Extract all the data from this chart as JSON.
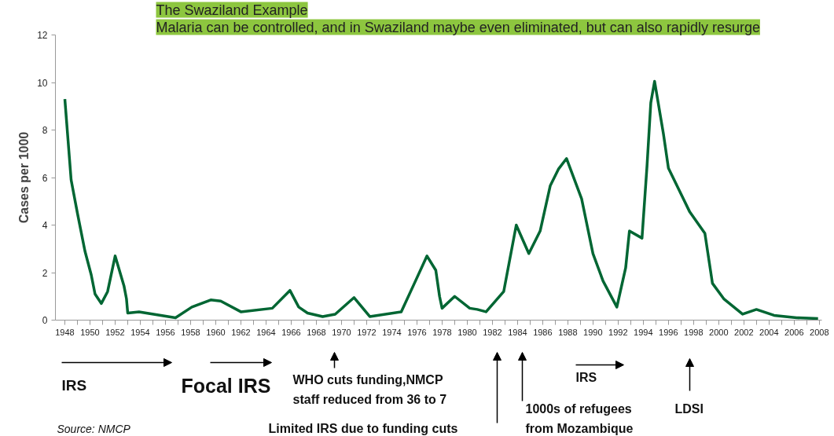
{
  "chart_data": {
    "type": "line",
    "title": "The Swaziland Example",
    "subtitle": "Malaria can be controlled, and in Swaziland maybe even eliminated, but can also rapidly resurge",
    "ylabel": "Cases per 1000",
    "x": [
      1948,
      1948.5,
      1949.0,
      1949.6,
      1950.1,
      1950.4,
      1950.9,
      1951.4,
      1952.0,
      1952.7,
      1952.9,
      1953.0,
      1953.9,
      1956.8,
      1958.1,
      1959.6,
      1960.4,
      1962.0,
      1964.5,
      1965.9,
      1966.6,
      1967.3,
      1968.5,
      1969.5,
      1971.0,
      1972.25,
      1974.75,
      1975.8,
      1976.8,
      1977.5,
      1977.8,
      1978.0,
      1979.0,
      1980.2,
      1980.8,
      1981.5,
      1982.9,
      1983.9,
      1984.9,
      1985.8,
      1986.6,
      1987.25,
      1987.9,
      1989.1,
      1990.0,
      1990.8,
      1991.9,
      1992.6,
      1992.9,
      1993.9,
      1994.3,
      1994.6,
      1994.9,
      1995.6,
      1996.0,
      1997.7,
      1998.9,
      1999.5,
      2000.4,
      2001.9,
      2003.0,
      2004.4,
      2006.2,
      2007.9
    ],
    "series": [
      {
        "color": "#006633",
        "values": [
          9.3,
          5.9,
          4.5,
          2.9,
          1.9,
          1.1,
          0.7,
          1.2,
          2.7,
          1.45,
          0.9,
          0.3,
          0.35,
          0.1,
          0.55,
          0.85,
          0.8,
          0.35,
          0.5,
          1.25,
          0.55,
          0.3,
          0.15,
          0.25,
          0.95,
          0.15,
          0.35,
          1.55,
          2.7,
          2.1,
          1.0,
          0.5,
          1.0,
          0.5,
          0.45,
          0.35,
          1.2,
          4.0,
          2.8,
          3.75,
          5.65,
          6.35,
          6.8,
          5.1,
          2.8,
          1.65,
          0.55,
          2.2,
          3.75,
          3.45,
          6.5,
          9.15,
          10.05,
          7.85,
          6.4,
          4.55,
          3.65,
          1.55,
          0.9,
          0.25,
          0.45,
          0.2,
          0.1,
          0.07
        ]
      }
    ],
    "xlim": [
      1947.25,
      2008.2
    ],
    "xticks": [
      {
        "value": 1948,
        "label": "1948"
      },
      {
        "value": 1949,
        "label": null
      },
      {
        "value": 1950,
        "label": "1950"
      },
      {
        "value": 1951,
        "label": null
      },
      {
        "value": 1952,
        "label": "1952"
      },
      {
        "value": 1953,
        "label": null
      },
      {
        "value": 1954,
        "label": "1954"
      },
      {
        "value": 1955,
        "label": null
      },
      {
        "value": 1956,
        "label": "1956"
      },
      {
        "value": 1957,
        "label": null
      },
      {
        "value": 1958,
        "label": "1958"
      },
      {
        "value": 1959,
        "label": null
      },
      {
        "value": 1960,
        "label": "1960"
      },
      {
        "value": 1961,
        "label": null
      },
      {
        "value": 1962,
        "label": "1962"
      },
      {
        "value": 1963,
        "label": null
      },
      {
        "value": 1964,
        "label": "1964"
      },
      {
        "value": 1965,
        "label": null
      },
      {
        "value": 1966,
        "label": "1966"
      },
      {
        "value": 1967,
        "label": null
      },
      {
        "value": 1968,
        "label": "1968"
      },
      {
        "value": 1969,
        "label": null
      },
      {
        "value": 1970,
        "label": "1970"
      },
      {
        "value": 1971,
        "label": null
      },
      {
        "value": 1972,
        "label": "1972"
      },
      {
        "value": 1973,
        "label": null
      },
      {
        "value": 1974,
        "label": "1974"
      },
      {
        "value": 1975,
        "label": null
      },
      {
        "value": 1976,
        "label": "1976"
      },
      {
        "value": 1977,
        "label": null
      },
      {
        "value": 1978,
        "label": "1978"
      },
      {
        "value": 1979,
        "label": null
      },
      {
        "value": 1980,
        "label": "1980"
      },
      {
        "value": 1981,
        "label": null
      },
      {
        "value": 1982,
        "label": "1982"
      },
      {
        "value": 1983,
        "label": null
      },
      {
        "value": 1984,
        "label": "1984"
      },
      {
        "value": 1985,
        "label": null
      },
      {
        "value": 1986,
        "label": "1986"
      },
      {
        "value": 1987,
        "label": null
      },
      {
        "value": 1988,
        "label": "1988"
      },
      {
        "value": 1989,
        "label": null
      },
      {
        "value": 1990,
        "label": "1990"
      },
      {
        "value": 1991,
        "label": null
      },
      {
        "value": 1992,
        "label": "1992"
      },
      {
        "value": 1993,
        "label": null
      },
      {
        "value": 1994,
        "label": "1994"
      },
      {
        "value": 1995,
        "label": null
      },
      {
        "value": 1996,
        "label": "1996"
      },
      {
        "value": 1997,
        "label": null
      },
      {
        "value": 1998,
        "label": "1998"
      },
      {
        "value": 1999,
        "label": null
      },
      {
        "value": 2000,
        "label": "2000"
      },
      {
        "value": 2001,
        "label": null
      },
      {
        "value": 2002,
        "label": "2002"
      },
      {
        "value": 2003,
        "label": null
      },
      {
        "value": 2004,
        "label": "2004"
      },
      {
        "value": 2005,
        "label": null
      },
      {
        "value": 2006,
        "label": "2006"
      },
      {
        "value": 2007,
        "label": null
      },
      {
        "value": 2008,
        "label": "2008"
      }
    ],
    "ylim": [
      0,
      12
    ],
    "yticks": [
      0,
      2,
      4,
      6,
      8,
      10,
      12
    ],
    "grid": false,
    "marker": "none",
    "line_style": "solid",
    "annotations": [
      "IRS",
      "Focal IRS",
      "WHO cuts funding,NMCP\nstaff reduced from 36 to 7",
      "Limited IRS due to funding cuts",
      "1000s of refugees\nfrom Mozambique",
      "IRS",
      "LDSI",
      "Source: NMCP"
    ]
  }
}
